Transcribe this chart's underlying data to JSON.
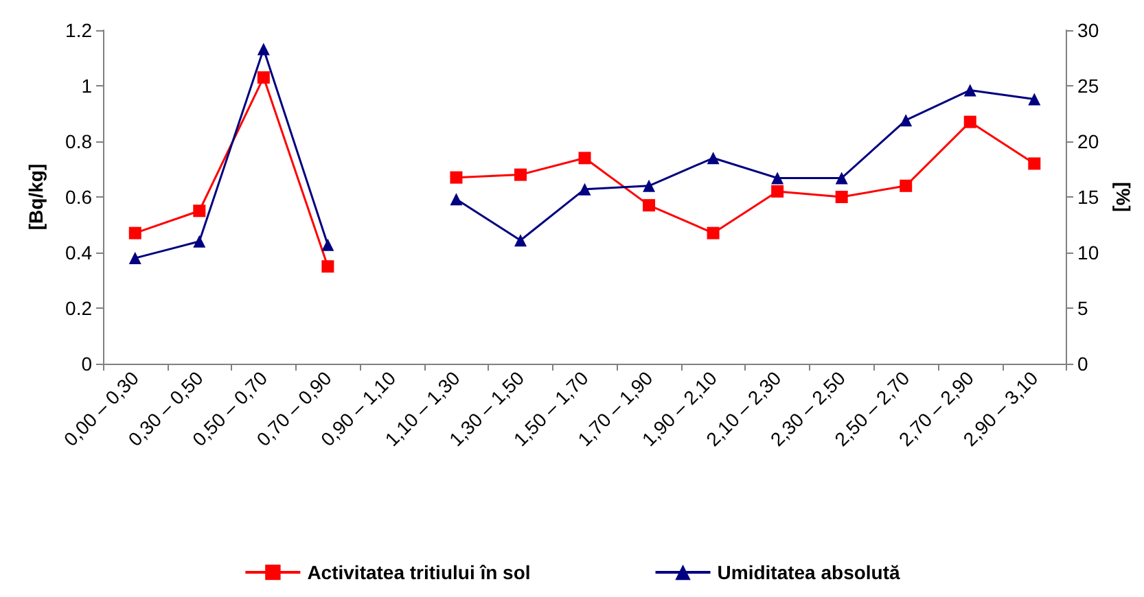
{
  "chart_data": {
    "type": "line",
    "ylabel": "[Bq/kg]",
    "y2label": "[%]",
    "categories": [
      "0,00 – 0,30",
      "0,30 – 0,50",
      "0,50 – 0,70",
      "0,70 – 0,90",
      "0,90 – 1,10",
      "1,10 – 1,30",
      "1,30 – 1,50",
      "1,50 – 1,70",
      "1,70 – 1,90",
      "1,90 – 2,10",
      "2,10 – 2,30",
      "2,30 – 2,50",
      "2,50 – 2,70",
      "2,70 – 2,90",
      "2,90 – 3,10"
    ],
    "series": [
      {
        "name": "Activitatea tritiului în sol",
        "color": "#ff0000",
        "marker": "square",
        "values": [
          0.47,
          0.55,
          1.03,
          0.35,
          null,
          0.67,
          0.68,
          0.74,
          0.57,
          0.47,
          0.62,
          0.6,
          0.64,
          0.87,
          0.72
        ]
      },
      {
        "name": "Umiditatea absolută",
        "color": "#000080",
        "marker": "triangle",
        "axis": "y2",
        "values": [
          9.5,
          11,
          28.3,
          10.7,
          null,
          14.8,
          11.1,
          15.7,
          16,
          18.5,
          16.7,
          16.7,
          21.9,
          24.6,
          23.8
        ]
      }
    ],
    "ylim": [
      0,
      1.2
    ],
    "yticks": [
      0,
      0.2,
      0.4,
      0.6,
      0.8,
      1,
      1.2
    ],
    "y2lim": [
      0,
      30
    ],
    "y2ticks": [
      0,
      5,
      10,
      15,
      20,
      25,
      30
    ],
    "grid": false,
    "legend": "bottom"
  }
}
